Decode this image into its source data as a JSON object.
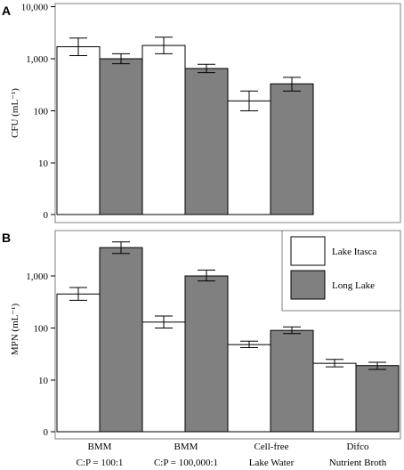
{
  "chart_data": [
    {
      "panel": "A",
      "type": "bar",
      "ylabel": "CFU (mL⁻¹)",
      "yscale": "log",
      "yticks": [
        {
          "value": 0,
          "label": "0"
        },
        {
          "value": 10,
          "label": "10"
        },
        {
          "value": 100,
          "label": "100"
        },
        {
          "value": 1000,
          "label": "1,000"
        },
        {
          "value": 10000,
          "label": "10,000"
        }
      ],
      "categories": [
        "BMM C:P = 100:1",
        "BMM C:P = 100,000:1",
        "Cell-free Lake Water",
        "Difco Nutrient Broth"
      ],
      "series": [
        {
          "name": "Lake Itasca",
          "color": "#ffffff",
          "values": [
            1700,
            1800,
            155,
            null
          ],
          "err_low": [
            1150,
            1250,
            100,
            null
          ],
          "err_high": [
            2500,
            2600,
            240,
            null
          ]
        },
        {
          "name": "Long Lake",
          "color": "#808080",
          "values": [
            1000,
            650,
            330,
            null
          ],
          "err_low": [
            800,
            540,
            240,
            null
          ],
          "err_high": [
            1250,
            780,
            440,
            null
          ]
        }
      ]
    },
    {
      "panel": "B",
      "type": "bar",
      "ylabel": "MPN (mL⁻¹)",
      "yscale": "log",
      "yticks": [
        {
          "value": 0,
          "label": "0"
        },
        {
          "value": 10,
          "label": "10"
        },
        {
          "value": 100,
          "label": "100"
        },
        {
          "value": 1000,
          "label": "1,000"
        }
      ],
      "categories": [
        "BMM C:P = 100:1",
        "BMM C:P = 100,000:1",
        "Cell-free Lake Water",
        "Difco Nutrient Broth"
      ],
      "series": [
        {
          "name": "Lake Itasca",
          "color": "#ffffff",
          "values": [
            450,
            130,
            48,
            21
          ],
          "err_low": [
            340,
            100,
            42,
            18
          ],
          "err_high": [
            600,
            170,
            56,
            25
          ]
        },
        {
          "name": "Long Lake",
          "color": "#808080",
          "values": [
            3500,
            1000,
            90,
            19
          ],
          "err_low": [
            2700,
            800,
            78,
            16
          ],
          "err_high": [
            4500,
            1300,
            105,
            22
          ]
        }
      ],
      "legend": {
        "position": "top-right",
        "entries": [
          {
            "label": "Lake Itasca",
            "color": "#ffffff"
          },
          {
            "label": "Long Lake",
            "color": "#808080"
          }
        ]
      }
    }
  ],
  "x_categories": [
    {
      "line1": "BMM",
      "line2": "C:P = 100:1"
    },
    {
      "line1": "BMM",
      "line2": "C:P = 100,000:1"
    },
    {
      "line1": "Cell-free",
      "line2": "Lake Water"
    },
    {
      "line1": "Difco",
      "line2": "Nutrient Broth"
    }
  ]
}
